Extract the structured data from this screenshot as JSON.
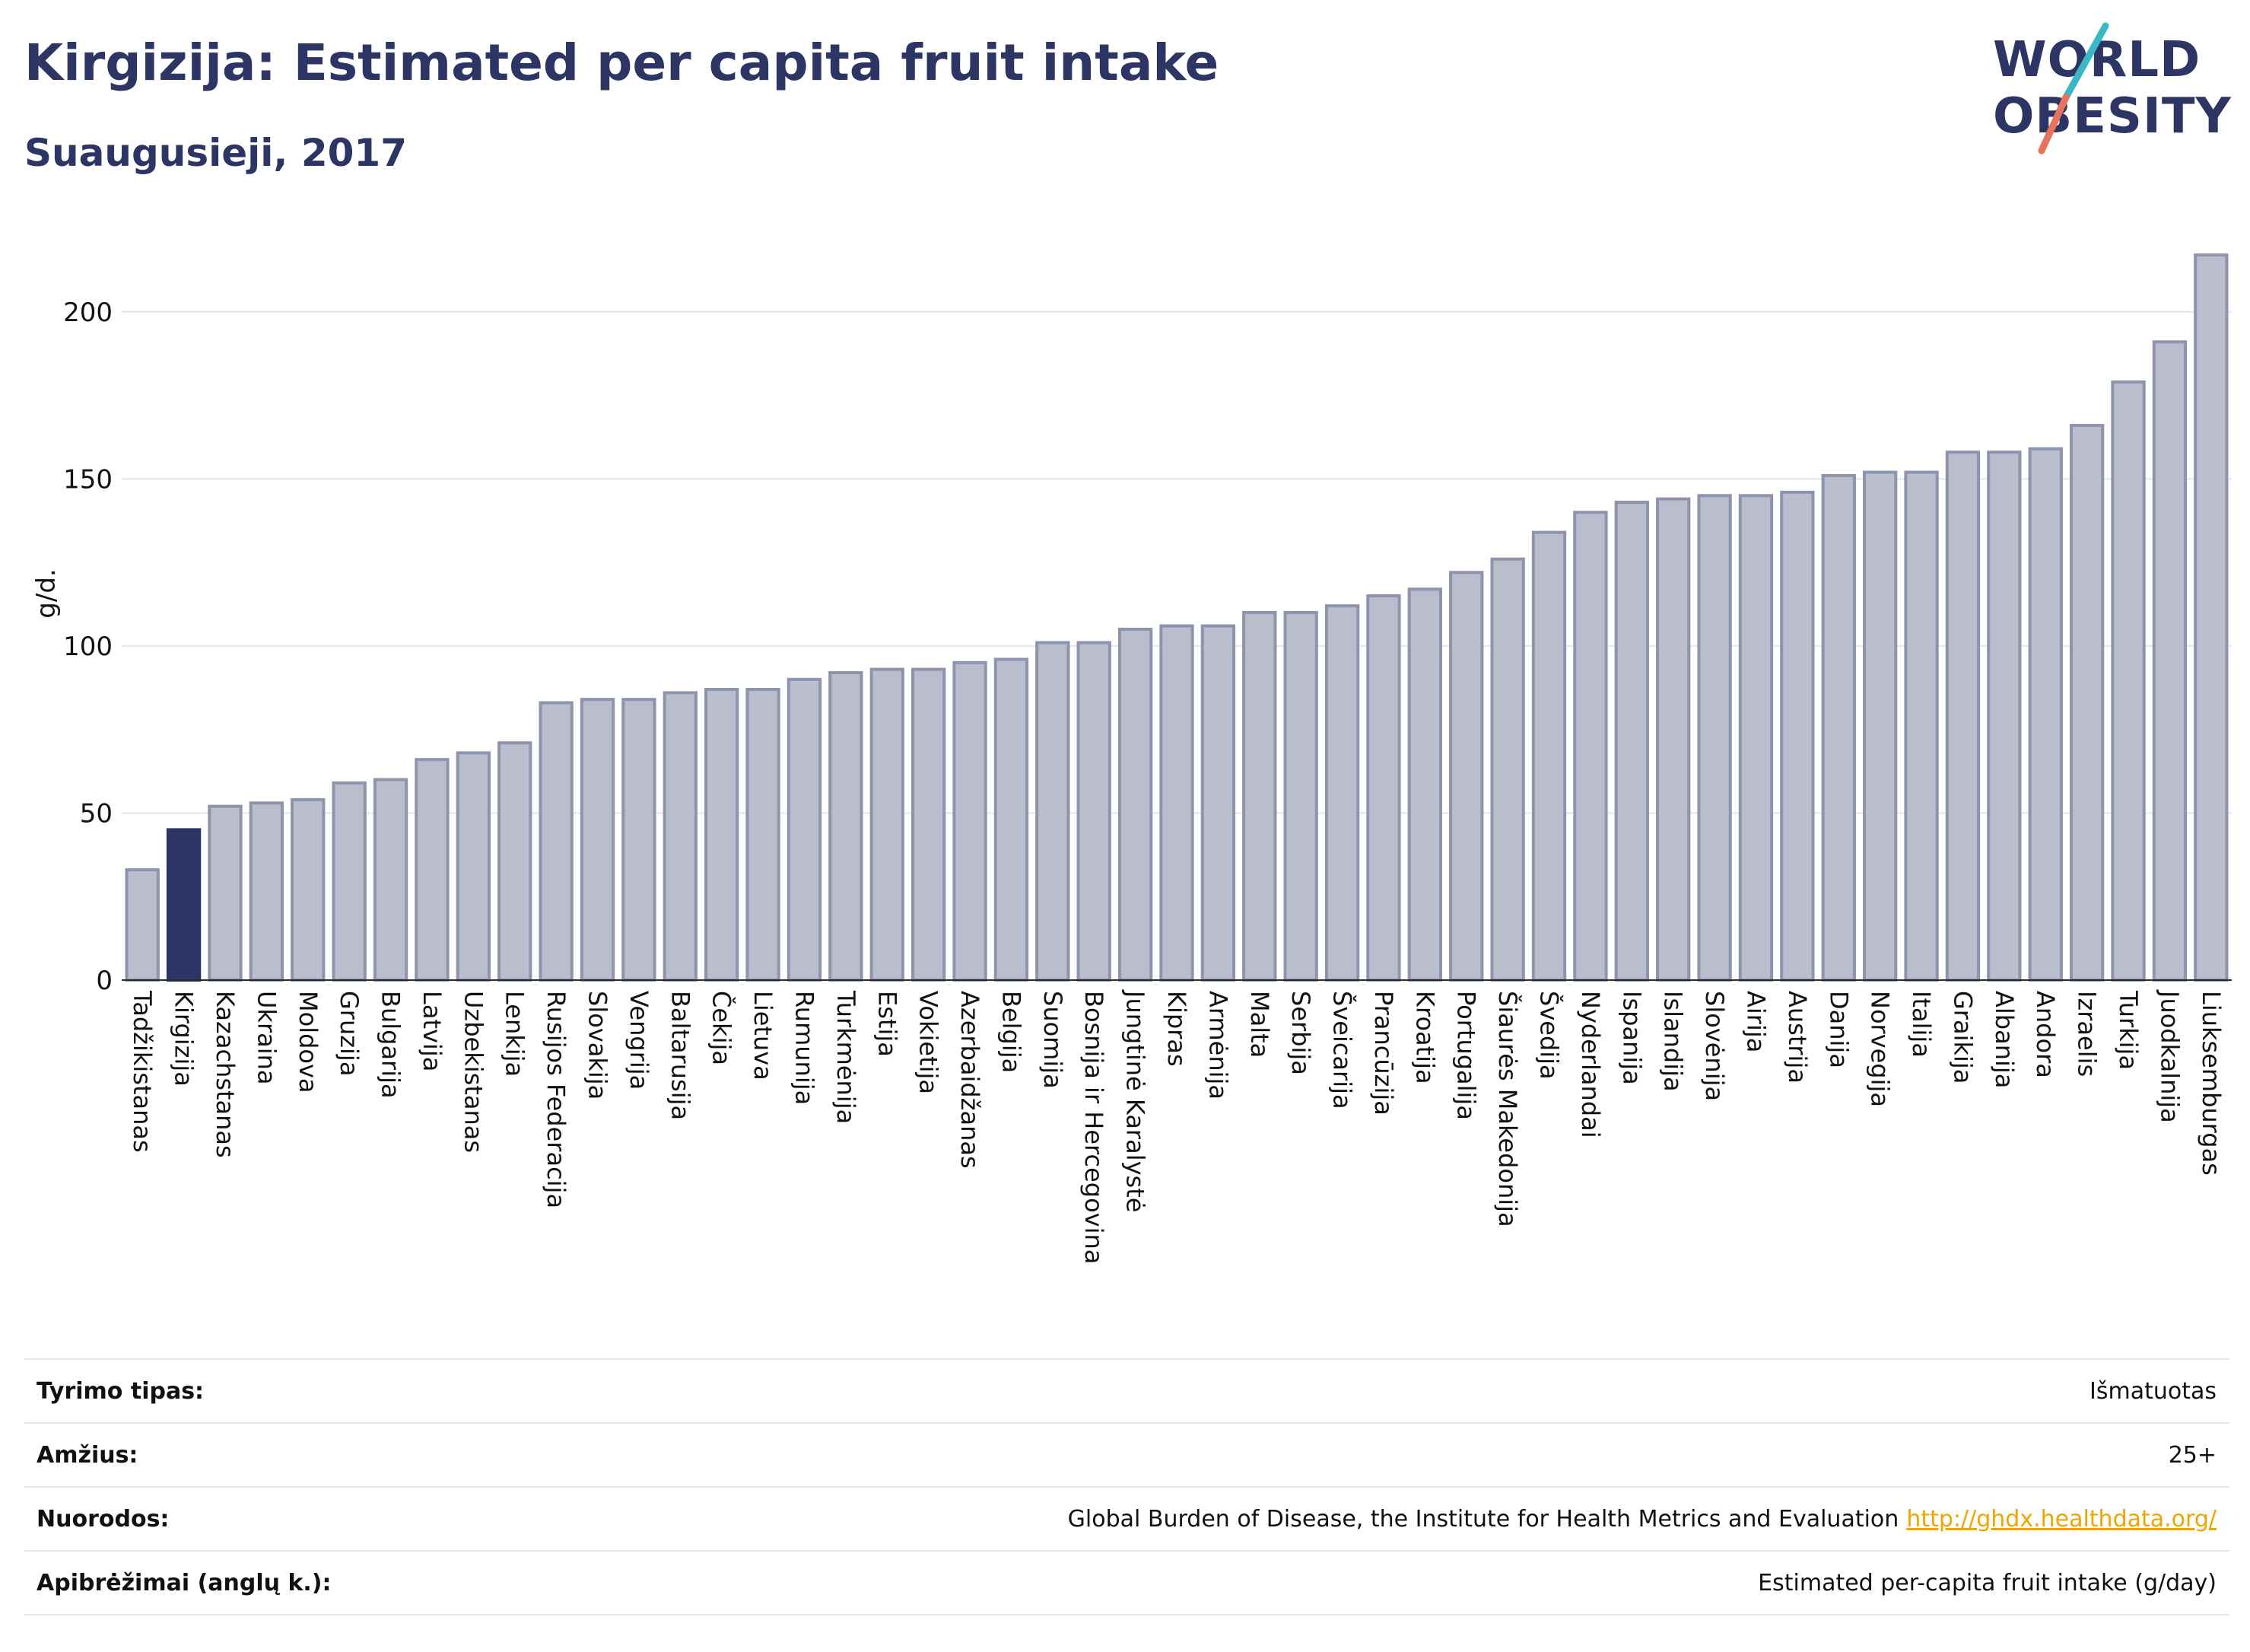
{
  "header": {
    "title": "Kirgizija: Estimated per capita fruit intake",
    "subtitle": "Suaugusieji, 2017"
  },
  "logo": {
    "line1": "WORLD",
    "line2": "OBESITY",
    "text_color": "#2c3563",
    "accent_colors": [
      "#3bb8c4",
      "#e8735c"
    ]
  },
  "chart_data": {
    "type": "bar",
    "ylabel": "g/d.",
    "xlabel": "",
    "ylim": [
      0,
      225
    ],
    "yticks": [
      0,
      50,
      100,
      150,
      200
    ],
    "grid": true,
    "highlight": "Kirgizija",
    "colors": {
      "default": "#b9bdcc",
      "default_edge": "#8e94ad",
      "highlight": "#2c3563"
    },
    "categories": [
      "Tadžikistanas",
      "Kirgizija",
      "Kazachstanas",
      "Ukraina",
      "Moldova",
      "Gruzija",
      "Bulgarija",
      "Latvija",
      "Uzbekistanas",
      "Lenkija",
      "Rusijos Federacija",
      "Slovakija",
      "Vengrija",
      "Baltarusija",
      "Čekija",
      "Lietuva",
      "Rumunija",
      "Turkmėnija",
      "Estija",
      "Vokietija",
      "Azerbaidžanas",
      "Belgija",
      "Suomija",
      "Bosnija ir Hercegovina",
      "Jungtinė Karalystė",
      "Kipras",
      "Armėnija",
      "Malta",
      "Serbija",
      "Šveicarija",
      "Prancūzija",
      "Kroatija",
      "Portugalija",
      "Šiaurės Makedonija",
      "Švedija",
      "Nyderlandai",
      "Ispanija",
      "Islandija",
      "Slovėnija",
      "Airija",
      "Austrija",
      "Danija",
      "Norvegija",
      "Italija",
      "Graikija",
      "Albanija",
      "Andora",
      "Izraelis",
      "Turkija",
      "Juodkalnija",
      "Liuksemburgas"
    ],
    "values": [
      33,
      45,
      52,
      53,
      54,
      59,
      60,
      66,
      68,
      71,
      83,
      84,
      84,
      86,
      87,
      87,
      90,
      92,
      93,
      93,
      95,
      96,
      101,
      101,
      105,
      106,
      106,
      110,
      110,
      112,
      115,
      117,
      122,
      126,
      134,
      140,
      143,
      144,
      145,
      145,
      146,
      151,
      152,
      152,
      158,
      158,
      159,
      166,
      179,
      191,
      217
    ]
  },
  "meta": {
    "rows": [
      {
        "label": "Tyrimo tipas:",
        "value": "Išmatuotas",
        "link": ""
      },
      {
        "label": "Amžius:",
        "value": "25+",
        "link": ""
      },
      {
        "label": "Nuorodos:",
        "value": "Global Burden of Disease, the Institute for Health Metrics and Evaluation",
        "link": "http://ghdx.healthdata.org/"
      },
      {
        "label": "Apibrėžimai (anglų k.):",
        "value": "Estimated per-capita fruit intake (g/day)",
        "link": ""
      }
    ]
  }
}
